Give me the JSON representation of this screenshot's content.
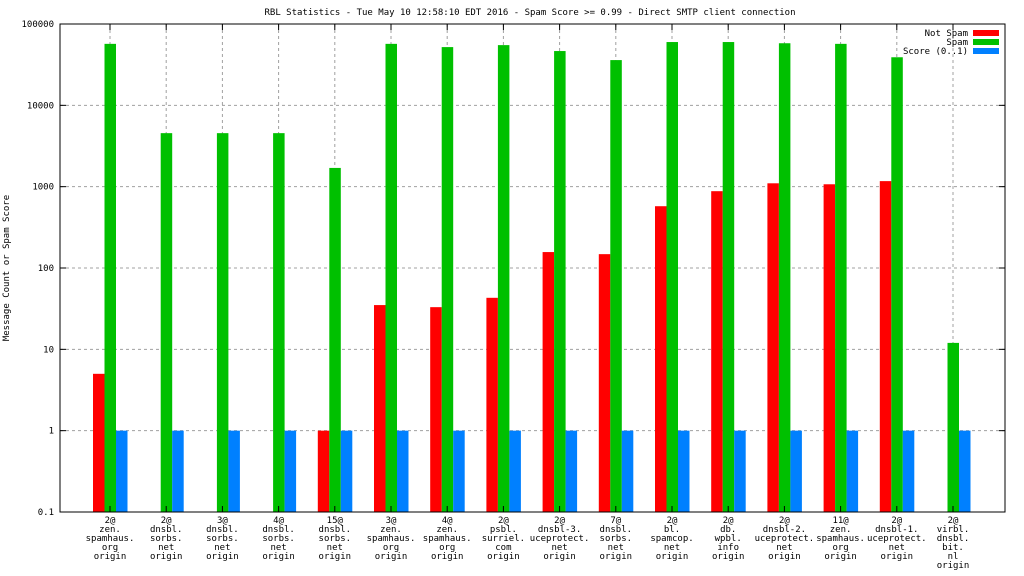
{
  "chart_data": {
    "type": "bar",
    "title": "RBL Statistics - Tue May 10 12:58:10 EDT 2016 - Spam Score >= 0.99 - Direct SMTP client connection",
    "xlabel": "",
    "ylabel": "Message Count or Spam Score",
    "yscale": "log",
    "ylim": [
      0.1,
      100000
    ],
    "yticks": [
      "0.1",
      "1",
      "10",
      "100",
      "1000",
      "10000",
      "100000"
    ],
    "grid": true,
    "legend_position": "top-right",
    "categories": [
      [
        "2@",
        "zen.",
        "spamhaus.",
        "org",
        "origin"
      ],
      [
        "2@",
        "dnsbl.",
        "sorbs.",
        "net",
        "origin"
      ],
      [
        "3@",
        "dnsbl.",
        "sorbs.",
        "net",
        "origin"
      ],
      [
        "4@",
        "dnsbl.",
        "sorbs.",
        "net",
        "origin"
      ],
      [
        "15@",
        "dnsbl.",
        "sorbs.",
        "net",
        "origin"
      ],
      [
        "3@",
        "zen.",
        "spamhaus.",
        "org",
        "origin"
      ],
      [
        "4@",
        "zen.",
        "spamhaus.",
        "org",
        "origin"
      ],
      [
        "2@",
        "psbl.",
        "surriel.",
        "com",
        "origin"
      ],
      [
        "2@",
        "dnsbl-3.",
        "uceprotect.",
        "net",
        "origin"
      ],
      [
        "7@",
        "dnsbl.",
        "sorbs.",
        "net",
        "origin"
      ],
      [
        "2@",
        "bl.",
        "spamcop.",
        "net",
        "origin"
      ],
      [
        "2@",
        "db.",
        "wpbl.",
        "info",
        "origin"
      ],
      [
        "2@",
        "dnsbl-2.",
        "uceprotect.",
        "net",
        "origin"
      ],
      [
        "11@",
        "zen.",
        "spamhaus.",
        "org",
        "origin"
      ],
      [
        "2@",
        "dnsbl-1.",
        "uceprotect.",
        "net",
        "origin"
      ],
      [
        "2@",
        "virbl.",
        "dnsbl.",
        "bit.",
        "nl",
        "origin"
      ]
    ],
    "series": [
      {
        "name": "Not Spam",
        "color": "#ff0000",
        "values": [
          5,
          null,
          null,
          null,
          1,
          35,
          33,
          43,
          157,
          148,
          575,
          880,
          1100,
          1070,
          1170,
          null
        ]
      },
      {
        "name": "Spam",
        "color": "#00c000",
        "values": [
          57000,
          4550,
          4550,
          4550,
          1700,
          57000,
          52000,
          55000,
          46500,
          36000,
          60000,
          60000,
          58000,
          57000,
          39000,
          12
        ]
      },
      {
        "name": "Score (0..1)",
        "color": "#0080ff",
        "values": [
          1,
          1,
          1,
          1,
          1,
          1,
          1,
          1,
          1,
          1,
          1,
          1,
          1,
          1,
          1,
          1
        ]
      }
    ]
  }
}
